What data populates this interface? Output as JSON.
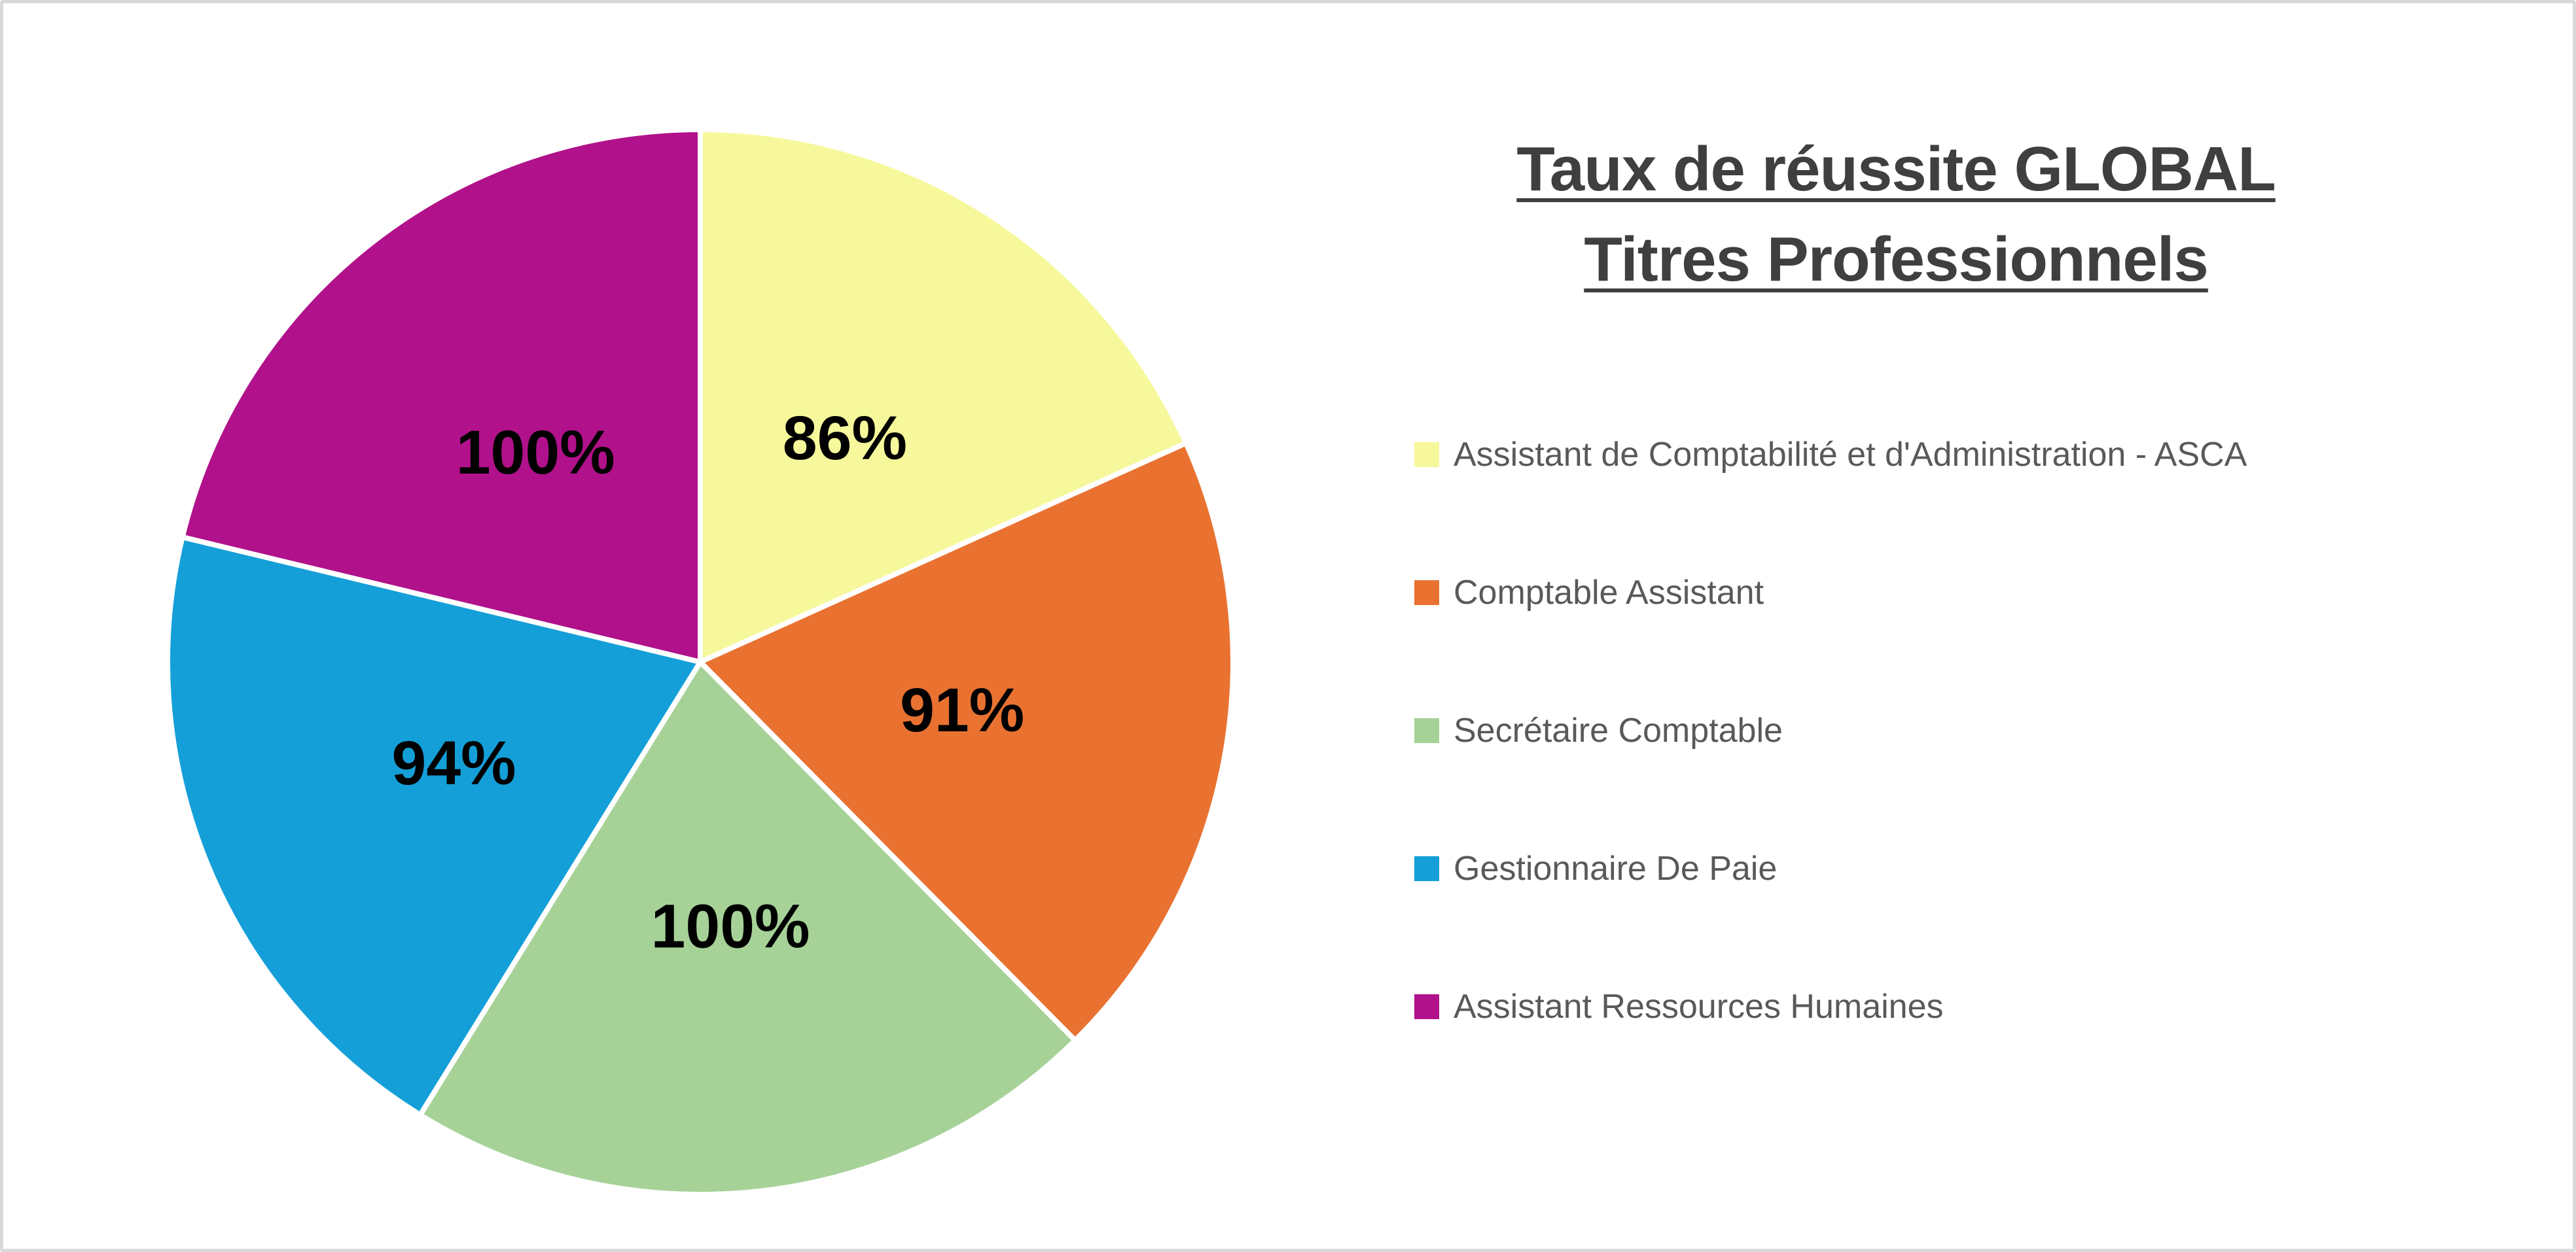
{
  "frame": {
    "border_color": "#D9D9D9",
    "background": "#FFFFFF"
  },
  "title": {
    "line1": "Taux de réussite GLOBAL",
    "line2": "Titres Professionnels",
    "color": "#3F3F3F"
  },
  "legend": {
    "text_color": "#595959",
    "position": "right"
  },
  "chart_data": {
    "type": "pie",
    "title": "Taux de réussite GLOBAL Titres Professionnels",
    "categories": [
      "Assistant de Comptabilité et d'Administration - ASCA",
      "Comptable Assistant",
      "Secrétaire Comptable",
      "Gestionnaire De Paie",
      "Assistant Ressources Humaines"
    ],
    "values": [
      86,
      91,
      100,
      94,
      100
    ],
    "data_labels": [
      "86%",
      "91%",
      "100%",
      "94%",
      "100%"
    ],
    "colors": [
      "#F6F89B",
      "#E97231",
      "#A6D298",
      "#149FD8",
      "#B1118A"
    ],
    "unit": "%",
    "start_angle_deg": 0,
    "direction": "clockwise",
    "slice_stroke_color": "#FFFFFF",
    "label_color": "#000000",
    "legend_position": "right",
    "grid": false
  }
}
